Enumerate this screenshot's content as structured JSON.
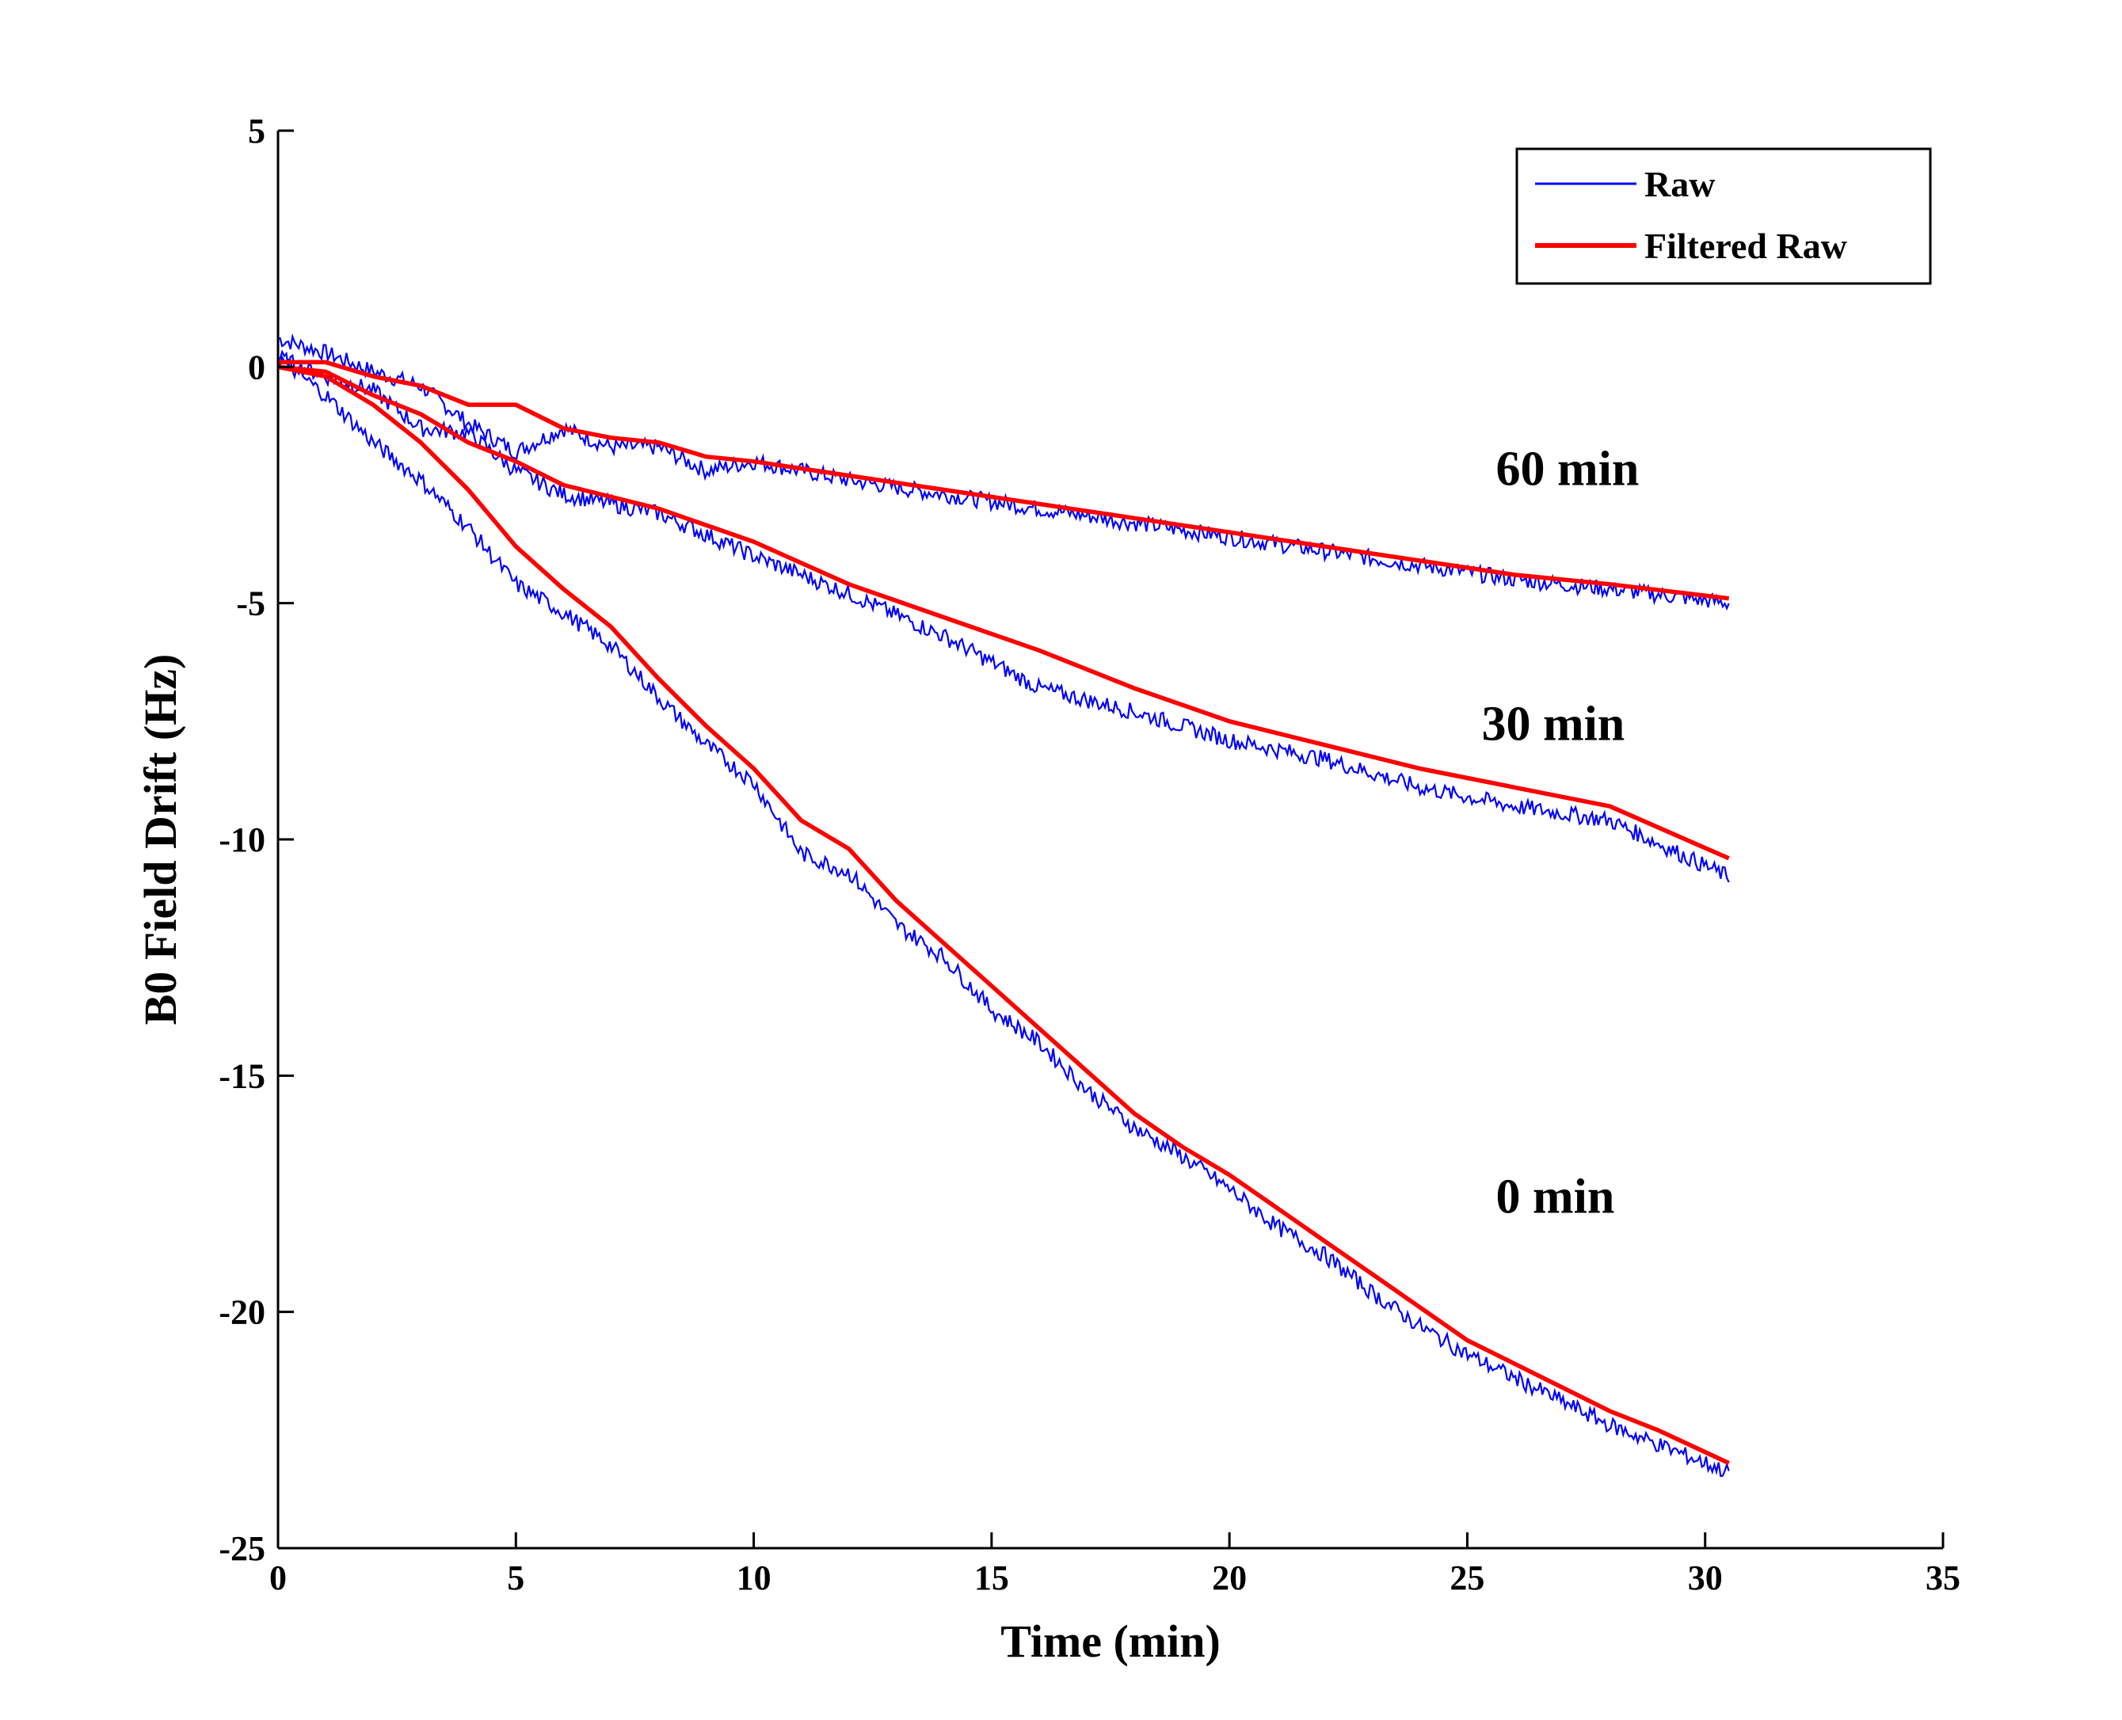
{
  "chart_data": {
    "type": "line",
    "title": "",
    "xlabel": "Time (min)",
    "ylabel": "B0 Field Drift (Hz)",
    "xlim": [
      0,
      35
    ],
    "ylim": [
      -25,
      5
    ],
    "xticks": [
      0,
      5,
      10,
      15,
      20,
      25,
      30,
      35
    ],
    "yticks": [
      5,
      0,
      -5,
      -10,
      -15,
      -20,
      -25
    ],
    "xtick_labels": [
      "0",
      "5",
      "10",
      "15",
      "20",
      "25",
      "30",
      "35"
    ],
    "ytick_labels": [
      "5",
      "0",
      "-5",
      "-10",
      "-15",
      "-20",
      "-25"
    ],
    "grid": false,
    "legend": {
      "position": "top-right",
      "entries": [
        {
          "label": "Raw",
          "color": "#0000ff",
          "style": "thin"
        },
        {
          "label": "Filtered Raw",
          "color": "#ff0000",
          "style": "thick"
        }
      ]
    },
    "annotations": [
      {
        "text": "60 min",
        "x": 25.6,
        "y": -2.5
      },
      {
        "text": "30 min",
        "x": 25.3,
        "y": -7.9
      },
      {
        "text": "0 min",
        "x": 25.6,
        "y": -17.9
      }
    ],
    "series": [
      {
        "name": "Filtered Raw (60 min)",
        "role": "filtered",
        "color": "#ff0000",
        "x": [
          0,
          1,
          2,
          3,
          4,
          5,
          6,
          7,
          8,
          9,
          10,
          12,
          14,
          16,
          18,
          20,
          22,
          24,
          26,
          28,
          30.5
        ],
        "y": [
          0.1,
          0.1,
          -0.2,
          -0.4,
          -0.8,
          -0.8,
          -1.3,
          -1.5,
          -1.6,
          -1.9,
          -2.0,
          -2.3,
          -2.6,
          -2.9,
          -3.2,
          -3.5,
          -3.8,
          -4.1,
          -4.4,
          -4.6,
          -4.9
        ]
      },
      {
        "name": "Raw (60 min)",
        "role": "raw",
        "color": "#0000ff",
        "x": [
          0,
          1,
          2,
          3,
          4,
          5,
          6,
          7,
          8,
          9,
          10,
          12,
          14,
          16,
          18,
          20,
          22,
          24,
          26,
          28,
          30.5
        ],
        "y": [
          0.6,
          0.3,
          -0.1,
          -0.4,
          -1.2,
          -1.8,
          -1.3,
          -1.7,
          -1.7,
          -2.2,
          -2.0,
          -2.4,
          -2.7,
          -3.0,
          -3.3,
          -3.6,
          -3.9,
          -4.2,
          -4.5,
          -4.7,
          -5.0
        ]
      },
      {
        "name": "Filtered Raw (30 min)",
        "role": "filtered",
        "color": "#ff0000",
        "x": [
          0,
          1,
          2,
          3,
          4,
          5,
          6,
          8,
          10,
          12,
          14,
          16,
          18,
          20,
          22,
          24,
          26,
          28,
          30.5
        ],
        "y": [
          0,
          -0.1,
          -0.6,
          -1.0,
          -1.6,
          -2.0,
          -2.5,
          -3.0,
          -3.7,
          -4.6,
          -5.3,
          -6.0,
          -6.8,
          -7.5,
          -8.0,
          -8.5,
          -8.9,
          -9.3,
          -10.4
        ]
      },
      {
        "name": "Raw (30 min)",
        "role": "raw",
        "color": "#0000ff",
        "x": [
          0,
          1,
          2,
          3,
          4,
          5,
          6,
          8,
          10,
          12,
          14,
          16,
          18,
          20,
          22,
          24,
          26,
          28,
          30.5
        ],
        "y": [
          0.2,
          -0.2,
          -0.5,
          -1.3,
          -1.4,
          -2.2,
          -2.7,
          -3.1,
          -4.0,
          -4.8,
          -5.7,
          -6.8,
          -7.3,
          -7.9,
          -8.3,
          -8.9,
          -9.3,
          -9.6,
          -10.8
        ]
      },
      {
        "name": "Filtered Raw (0 min)",
        "role": "filtered",
        "color": "#ff0000",
        "x": [
          0,
          1,
          2,
          3,
          4,
          5,
          6,
          7,
          8,
          9,
          10,
          11,
          12,
          13,
          14,
          15,
          16,
          17,
          18,
          19,
          20,
          21,
          22,
          23,
          24,
          25,
          26,
          27,
          28,
          29,
          30.5
        ],
        "y": [
          0,
          -0.2,
          -0.8,
          -1.6,
          -2.6,
          -3.8,
          -4.7,
          -5.5,
          -6.6,
          -7.6,
          -8.5,
          -9.6,
          -10.2,
          -11.3,
          -12.2,
          -13.1,
          -14.0,
          -14.9,
          -15.8,
          -16.5,
          -17.1,
          -17.8,
          -18.5,
          -19.2,
          -19.9,
          -20.6,
          -21.1,
          -21.6,
          -22.1,
          -22.5,
          -23.2
        ]
      },
      {
        "name": "Raw (0 min)",
        "role": "raw",
        "color": "#0000ff",
        "x": [
          0,
          1,
          2,
          3,
          4,
          5,
          6,
          7,
          8,
          9,
          10,
          11,
          12,
          13,
          14,
          15,
          16,
          17,
          18,
          19,
          20,
          21,
          22,
          23,
          24,
          25,
          26,
          27,
          28,
          29,
          30.5
        ],
        "y": [
          0.2,
          -0.6,
          -1.6,
          -2.4,
          -3.4,
          -4.6,
          -5.2,
          -5.9,
          -7.0,
          -8.0,
          -8.8,
          -10.3,
          -10.7,
          -11.8,
          -12.5,
          -13.6,
          -14.3,
          -15.3,
          -16.1,
          -16.7,
          -17.4,
          -18.2,
          -18.8,
          -19.6,
          -20.3,
          -20.9,
          -21.4,
          -21.9,
          -22.4,
          -22.8,
          -23.4
        ]
      }
    ]
  }
}
